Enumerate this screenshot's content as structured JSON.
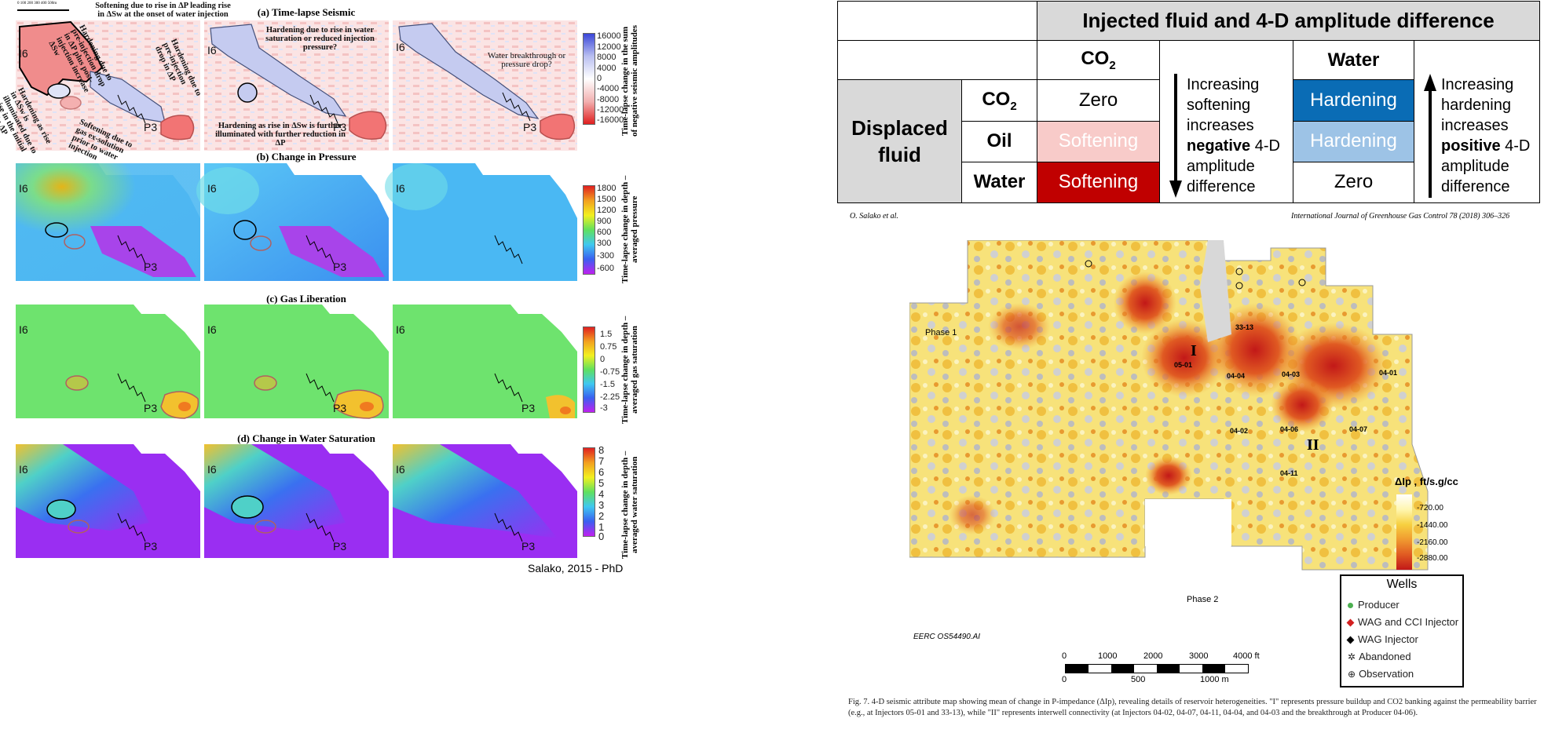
{
  "left": {
    "scale_text": "0  100 200 300 400 500m",
    "rows": [
      {
        "title": "(a)   Time-lapse Seismic",
        "colorbar_label": "Time-lapse change in the sum of negative seismic amplitudes",
        "ticks": [
          "16000",
          "12000",
          "8000",
          "4000",
          "0",
          "-4000",
          "-8000",
          "-12000",
          "-16000"
        ]
      },
      {
        "title": "(b)   Change in Pressure",
        "colorbar_label": "Time-lapse change in depth – averaged pressure",
        "ticks": [
          "1800",
          "1500",
          "1200",
          "900",
          "600",
          "300",
          "-300",
          "-600"
        ]
      },
      {
        "title": "(c)   Gas Liberation",
        "colorbar_label": "Time-lapse change in depth – averaged gas saturation",
        "ticks": [
          "1.5",
          "0.75",
          "0",
          "-0.75",
          "-1.5",
          "-2.25",
          "-3"
        ]
      },
      {
        "title": "(d)   Change in Water Saturation",
        "colorbar_label": "Time-lapse change in depth – averaged water saturation",
        "ticks": [
          "8",
          "7",
          "6",
          "5",
          "4",
          "3",
          "2",
          "1",
          "0"
        ]
      }
    ],
    "annotations": {
      "softening_top": "Softening due to rise in ΔP leading rise in ΔSw at the onset of water injection",
      "hardening_pre": "Hardening due to pre-injection drop in ΔP plus post-injection increase ΔSw",
      "hardening_pre2": "Hardening due to pre-injection drop in ΔP",
      "hardening_rise": "Hardening as rise in ΔSw is illuminated due to rise in the initial rise in ΔP",
      "softening_gas": "Softening due to gas ex-solution prior to water injection",
      "hardening_water": "Hardening due to rise in water saturation or reduced injection pressure?",
      "hardening_further": "Hardening as rise in ΔSw is further illuminated with further reduction in ΔP",
      "breakthrough": "Water breakthrough or pressure drop?"
    },
    "well_injector": "I6",
    "well_producer": "P3",
    "credit": "Salako, 2015 - PhD"
  },
  "table": {
    "header": "Injected fluid and 4-D amplitude difference",
    "col_co2": "CO",
    "col_co2_sub": "2",
    "col_water": "Water",
    "displaced_label": "Displaced fluid",
    "rows": [
      {
        "fluid": "CO",
        "fluid_sub": "2",
        "co2": "Zero",
        "water": "Hardening"
      },
      {
        "fluid": "Oil",
        "fluid_sub": "",
        "co2": "Softening",
        "water": "Hardening"
      },
      {
        "fluid": "Water",
        "fluid_sub": "",
        "co2": "Softening",
        "water": "Zero"
      }
    ],
    "neg_text_1": "Increasing softening increases",
    "neg_bold": "negative",
    "neg_text_2": "4-D amplitude difference",
    "pos_text_1": "Increasing hardening increases",
    "pos_bold": "positive",
    "pos_text_2": "4-D amplitude difference",
    "colors": {
      "header_bg": "#d9d9d9",
      "hard_dark": "#0a6cb5",
      "hard_light": "#9dc3e6",
      "soft_light": "#f8cbc9",
      "soft_dark": "#c00000"
    }
  },
  "paper": {
    "author": "O. Salako et al.",
    "journal": "International Journal of Greenhouse Gas Control 78 (2018) 306–326",
    "phase1": "Phase 1",
    "phase2": "Phase 2",
    "labels": [
      "33-13",
      "05-01",
      "04-04",
      "04-03",
      "04-01",
      "04-02",
      "04-06",
      "04-07",
      "04-11"
    ],
    "roman1": "I",
    "roman2": "II",
    "colorbar_title": "ΔIp , ft/s.g/cc",
    "colorbar_ticks": [
      "-720.00",
      "-1440.00",
      "-2160.00",
      "-2880.00"
    ],
    "legend_title": "Wells",
    "legend": [
      "Producer",
      "WAG and CCI Injector",
      "WAG Injector",
      "Abandoned",
      "Observation"
    ],
    "scale_ft": [
      "0",
      "1000",
      "2000",
      "3000",
      "4000 ft"
    ],
    "scale_m": [
      "0",
      "500",
      "1000 m"
    ],
    "figure_id": "EERC OS54490.AI",
    "caption": "Fig. 7. 4-D seismic attribute map showing mean of change in P-impedance (ΔIp), revealing details of reservoir heterogeneities. \"I\" represents pressure buildup and CO2 banking against the permeability barrier (e.g., at Injectors 05-01 and 33-13), while \"II\" represents interwell connectivity (at Injectors 04-02, 04-07, 04-11, 04-04, and 04-03 and the breakthrough at Producer 04-06)."
  }
}
